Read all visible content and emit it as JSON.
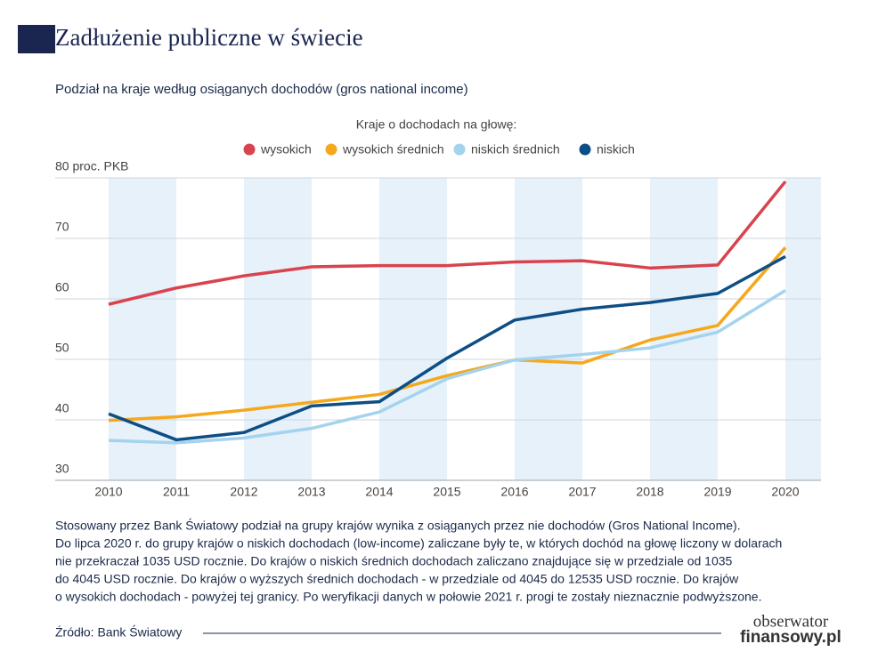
{
  "chart_data": {
    "type": "line",
    "title": "Zadłużenie publiczne w świecie",
    "subtitle": "Podział na kraje według osiąganych dochodów (gros national income)",
    "legend_title": "Kraje o dochodach na głowę:",
    "categories": [
      "2010",
      "2011",
      "2012",
      "2013",
      "2014",
      "2015",
      "2016",
      "2017",
      "2018",
      "2019",
      "2020"
    ],
    "series": [
      {
        "name": "wysokich",
        "color": "#d9434e",
        "values": [
          59.1,
          61.8,
          63.8,
          65.3,
          65.5,
          65.5,
          66.1,
          66.3,
          65.1,
          65.6,
          79.4
        ]
      },
      {
        "name": "wysokich średnich",
        "color": "#f5a81c",
        "values": [
          39.9,
          40.5,
          41.6,
          42.9,
          44.2,
          47.3,
          49.9,
          49.4,
          53.2,
          55.6,
          68.5
        ]
      },
      {
        "name": "niskich średnich",
        "color": "#a5d3ee",
        "values": [
          36.6,
          36.2,
          37.0,
          38.6,
          41.3,
          46.8,
          49.9,
          50.8,
          51.9,
          54.5,
          61.4
        ]
      },
      {
        "name": "niskich",
        "color": "#0d4f85",
        "values": [
          41.0,
          36.7,
          37.9,
          42.3,
          43.0,
          50.2,
          56.5,
          58.3,
          59.4,
          60.9,
          67.0
        ]
      }
    ],
    "ylim": [
      30,
      80
    ],
    "yticks": [
      30,
      40,
      50,
      60,
      70,
      {
        "value": 80,
        "label": "80 proc. PKB"
      }
    ],
    "grid": true,
    "note_lines": [
      "Stosowany przez Bank Światowy podział na grupy krajów wynika z osiąganych przez nie dochodów (Gros National Income).",
      "Do lipca 2020 r. do grupy krajów o niskich dochodach (low-income) zaliczane były te, w których dochód na głowę liczony w dolarach",
      "nie przekraczał 1035 USD rocznie. Do krajów o niskich średnich dochodach zaliczano znajdujące się w przedziale od  1035",
      "do 4045 USD rocznie. Do krajów o wyższych średnich dochodach - w przedziale od 4045 do 12535 USD rocznie. Do krajów",
      "o wysokich dochodach - powyżej tej granicy. Po weryfikacji danych w połowie 2021 r. progi te zostały nieznacznie podwyższone."
    ],
    "source": "Źródło: Bank Światowy",
    "logo": [
      "obserwator",
      "finansowy.pl"
    ]
  }
}
